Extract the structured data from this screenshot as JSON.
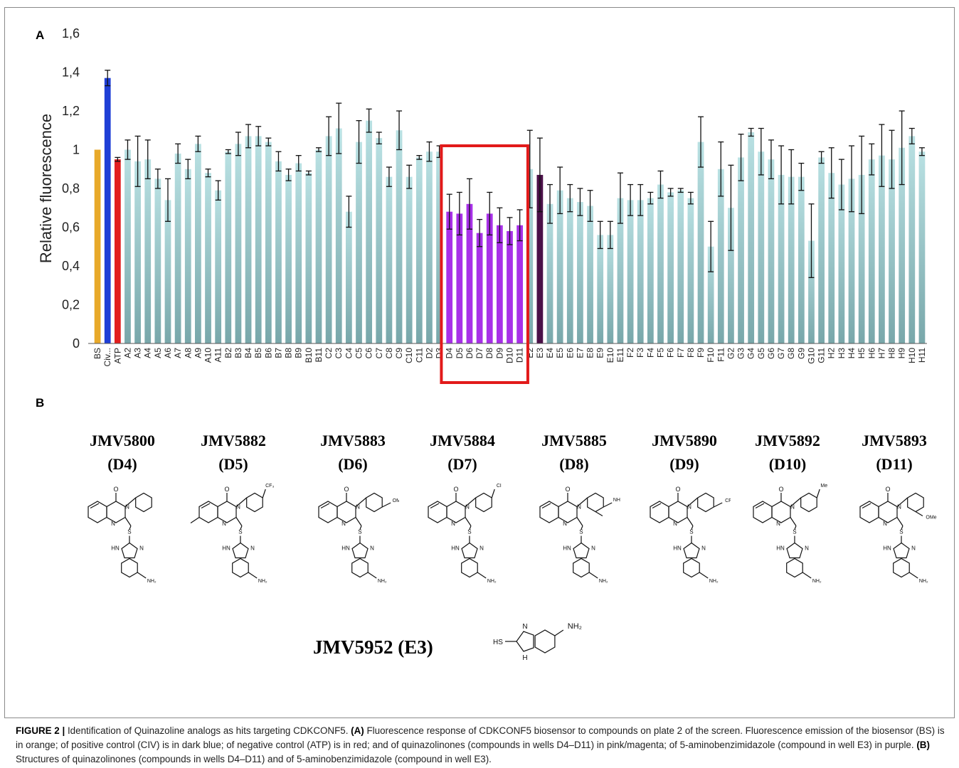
{
  "figure": {
    "panel_a_label": "A",
    "panel_b_label": "B",
    "caption": {
      "figure_number": "FIGURE 2 |",
      "lead": " Identification of Quinazoline analogs as hits targeting CDKCONF5. ",
      "a_tag": "(A)",
      "a_text": " Fluorescence response of CDKCONF5 biosensor to compounds on plate 2 of the screen. Fluorescence emission of the biosensor (BS) is in orange; of positive control (CIV) is in dark blue; of negative control (ATP) is in red; and of quinazolinones (compounds in wells D4–D11) in pink/magenta; of 5-aminobenzimidazole (compound in well E3) in purple. ",
      "b_tag": "(B)",
      "b_text": " Structures of quinazolinones (compounds in wells D4–D11) and of 5-aminobenzimidazole (compound in well E3)."
    }
  },
  "chart_data": {
    "type": "bar",
    "title": "",
    "xlabel": "",
    "ylabel": "Relative fluorescence",
    "ylim": [
      0,
      1.6
    ],
    "yticks": [
      "0",
      "0,2",
      "0,4",
      "0,6",
      "0,8",
      "1",
      "1,2",
      "1,4",
      "1,6"
    ],
    "grid": false,
    "highlight_box": [
      "D4",
      "D11"
    ],
    "colors": {
      "BS": "#e8a92a",
      "CIV": "#1f3fd6",
      "ATP": "#e21f1f",
      "hit": "#a830e8",
      "E3": "#4a1048",
      "default_top": "#b9e1e3",
      "default_bottom": "#78a7aa",
      "box": "#e21a1a"
    },
    "categories": [
      "BS",
      "Civ...",
      "ATP",
      "A2",
      "A3",
      "A4",
      "A5",
      "A6",
      "A7",
      "A8",
      "A9",
      "A10",
      "A11",
      "B2",
      "B3",
      "B4",
      "B5",
      "B6",
      "B7",
      "B8",
      "B9",
      "B10",
      "B11",
      "C2",
      "C3",
      "C4",
      "C5",
      "C6",
      "C7",
      "C8",
      "C9",
      "C10",
      "C11",
      "D2",
      "D3",
      "D4",
      "D5",
      "D6",
      "D7",
      "D8",
      "D9",
      "D10",
      "D11",
      "E2",
      "E3",
      "E4",
      "E5",
      "E6",
      "E7",
      "E8",
      "E9",
      "E10",
      "E11",
      "F2",
      "F3",
      "F4",
      "F5",
      "F6",
      "F7",
      "F8",
      "F9",
      "F10",
      "F11",
      "G2",
      "G3",
      "G4",
      "G5",
      "G6",
      "G7",
      "G8",
      "G9",
      "G10",
      "G11",
      "H2",
      "H3",
      "H4",
      "H5",
      "H6",
      "H7",
      "H8",
      "H9",
      "H10",
      "H11"
    ],
    "values": [
      1.0,
      1.37,
      0.95,
      1.0,
      0.94,
      0.95,
      0.85,
      0.74,
      0.98,
      0.9,
      1.03,
      0.88,
      0.79,
      0.99,
      1.03,
      1.07,
      1.07,
      1.04,
      0.94,
      0.87,
      0.93,
      0.88,
      1.0,
      1.07,
      1.11,
      0.68,
      1.04,
      1.15,
      1.06,
      0.86,
      1.1,
      0.86,
      0.96,
      0.99,
      0.99,
      0.68,
      0.67,
      0.72,
      0.57,
      0.67,
      0.61,
      0.58,
      0.61,
      0.9,
      0.87,
      0.72,
      0.79,
      0.75,
      0.73,
      0.71,
      0.56,
      0.56,
      0.75,
      0.74,
      0.74,
      0.75,
      0.82,
      0.78,
      0.79,
      0.75,
      1.04,
      0.5,
      0.9,
      0.7,
      0.96,
      1.09,
      0.99,
      0.95,
      0.87,
      0.86,
      0.86,
      0.53,
      0.96,
      0.88,
      0.82,
      0.85,
      0.87,
      0.95,
      0.97,
      0.95,
      1.01,
      1.07,
      0.99
    ],
    "errors": [
      0.0,
      0.04,
      0.01,
      0.05,
      0.13,
      0.1,
      0.05,
      0.11,
      0.05,
      0.05,
      0.04,
      0.02,
      0.05,
      0.01,
      0.06,
      0.06,
      0.05,
      0.02,
      0.05,
      0.03,
      0.04,
      0.01,
      0.01,
      0.1,
      0.13,
      0.08,
      0.11,
      0.06,
      0.03,
      0.05,
      0.1,
      0.06,
      0.01,
      0.05,
      0.03,
      0.09,
      0.11,
      0.13,
      0.07,
      0.11,
      0.09,
      0.07,
      0.08,
      0.2,
      0.19,
      0.1,
      0.12,
      0.07,
      0.07,
      0.08,
      0.07,
      0.07,
      0.13,
      0.08,
      0.08,
      0.03,
      0.07,
      0.02,
      0.01,
      0.03,
      0.13,
      0.13,
      0.14,
      0.22,
      0.12,
      0.02,
      0.12,
      0.1,
      0.15,
      0.14,
      0.07,
      0.19,
      0.03,
      0.13,
      0.13,
      0.17,
      0.2,
      0.08,
      0.16,
      0.15,
      0.19,
      0.04,
      0.02
    ]
  },
  "compounds": [
    {
      "name": "JMV5800",
      "well": "(D4)",
      "sub": "none",
      "quin_me": false
    },
    {
      "name": "JMV5882",
      "well": "(D5)",
      "sub": "CF₃",
      "pos": "meta",
      "quin_me": true
    },
    {
      "name": "JMV5883",
      "well": "(D6)",
      "sub": "OMe",
      "pos": "para",
      "quin_me": false
    },
    {
      "name": "JMV5884",
      "well": "(D7)",
      "sub": "Cl",
      "pos": "meta",
      "quin_me": false
    },
    {
      "name": "JMV5885",
      "well": "(D8)",
      "sub": "NH₂",
      "pos": "para-meta-Me",
      "quin_me": false
    },
    {
      "name": "JMV5890",
      "well": "(D9)",
      "sub": "CF₃",
      "pos": "para",
      "quin_me": false
    },
    {
      "name": "JMV5892",
      "well": "(D10)",
      "sub": "Me",
      "pos": "meta",
      "quin_me": false
    },
    {
      "name": "JMV5893",
      "well": "(D11)",
      "sub": "OMe",
      "pos": "ortho",
      "quin_me": false
    }
  ],
  "structure_labels": {
    "oxo": "O",
    "n": "N",
    "s": "S",
    "hn": "HN",
    "nh": "H",
    "nh2": "NH₂",
    "hs": "HS"
  },
  "e3": {
    "label": "JMV5952 (E3)"
  }
}
